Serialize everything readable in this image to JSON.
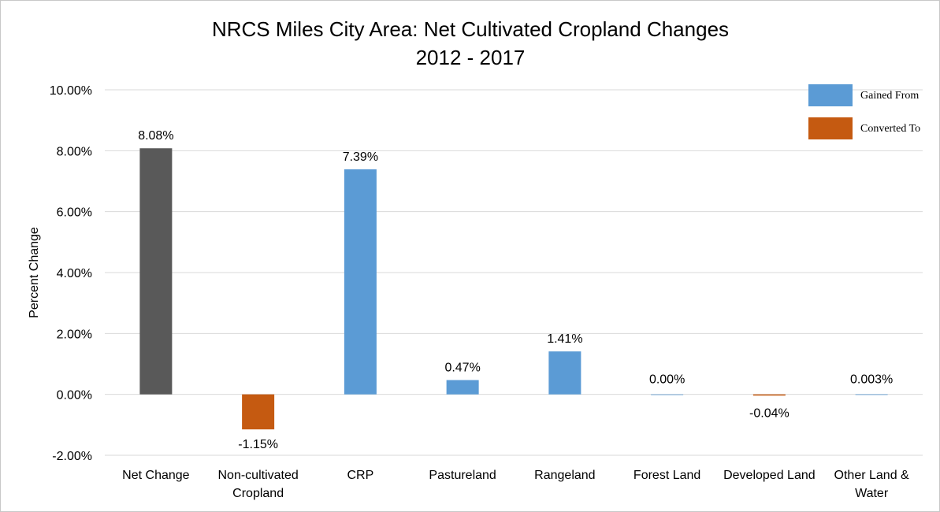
{
  "chart_data": {
    "type": "bar",
    "title": "NRCS Miles City Area: Net Cultivated Cropland Changes",
    "subtitle": "2012 - 2017",
    "xlabel": "",
    "ylabel": "Percent Change",
    "ylim": [
      -2.0,
      10.0
    ],
    "yticks": [
      -2.0,
      0.0,
      2.0,
      4.0,
      6.0,
      8.0,
      10.0
    ],
    "ytick_labels": [
      "-2.00%",
      "0.00%",
      "2.00%",
      "4.00%",
      "6.00%",
      "8.00%",
      "10.00%"
    ],
    "grid": true,
    "legend_position": "top-right",
    "categories": [
      [
        "Net Change"
      ],
      [
        "Non-cultivated",
        "Cropland"
      ],
      [
        "CRP"
      ],
      [
        "Pastureland"
      ],
      [
        "Rangeland"
      ],
      [
        "Forest Land"
      ],
      [
        "Developed Land"
      ],
      [
        "Other Land &",
        "Water"
      ]
    ],
    "values": [
      8.08,
      -1.15,
      7.39,
      0.47,
      1.41,
      0.0,
      -0.04,
      0.003
    ],
    "data_labels": [
      "8.08%",
      "-1.15%",
      "7.39%",
      "0.47%",
      "1.41%",
      "0.00%",
      "-0.04%",
      "0.003%"
    ],
    "bar_groups": [
      "net",
      "converted",
      "gained",
      "gained",
      "gained",
      "gained",
      "converted",
      "gained"
    ],
    "colors": {
      "net": "#595959",
      "gained": "#5b9bd5",
      "converted": "#c55a11"
    },
    "legend": [
      {
        "label": "Gained From",
        "group": "gained"
      },
      {
        "label": "Converted To",
        "group": "converted"
      }
    ]
  }
}
